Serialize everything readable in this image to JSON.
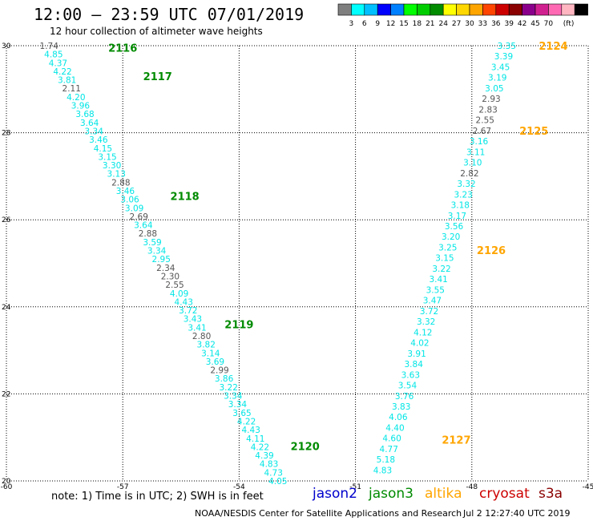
{
  "header": {
    "title": "12:00 – 23:59 UTC 07/01/2019",
    "subtitle": "12 hour collection of altimeter wave heights"
  },
  "colorbar": {
    "colors": [
      "#7f7f7f",
      "#00ffff",
      "#00bfff",
      "#0000ff",
      "#0080ff",
      "#00ff00",
      "#00cd00",
      "#008b00",
      "#ffff00",
      "#ffd700",
      "#ffa500",
      "#ff4500",
      "#cd0000",
      "#8b0000",
      "#8b008b",
      "#d02090",
      "#ff69b4",
      "#ffb6c1",
      "#000000"
    ],
    "labels": [
      "3",
      "6",
      "9",
      "12",
      "15",
      "18",
      "21",
      "24",
      "27",
      "30",
      "33",
      "36",
      "39",
      "42",
      "45",
      "70"
    ],
    "unit": "(ft)"
  },
  "footer": {
    "note": "note: 1) Time is in UTC; 2) SWH is in feet",
    "credit": "NOAA/NESDIS Center for Satellite Applications and Research",
    "timestamp": "Jul  2 12:27:40 UTC 2019"
  },
  "satellites": [
    {
      "name": "jason2",
      "color": "#0000cd"
    },
    {
      "name": "jason3",
      "color": "#008b00"
    },
    {
      "name": "altika",
      "color": "#ffa500"
    },
    {
      "name": "cryosat",
      "color": "#cd0000"
    },
    {
      "name": "s3a",
      "color": "#8b0000"
    }
  ],
  "chart_data": {
    "type": "scatter",
    "title": "12:00 – 23:59 UTC 07/01/2019",
    "subtitle": "12 hour collection of altimeter wave heights",
    "xlim": [
      -60,
      -45
    ],
    "ylim": [
      20,
      30
    ],
    "x_ticks": [
      "-60",
      "-57",
      "-54",
      "-51",
      "-48",
      "-45"
    ],
    "y_ticks": [
      "20",
      "22",
      "24",
      "26",
      "28",
      "30"
    ],
    "grid": true,
    "colors": {
      "cyan": "#00e5e5",
      "gray": "#555555",
      "pass_jason3": "#008b00",
      "pass_altika": "#ffa500"
    },
    "track_west": {
      "satellite": "jason3",
      "x_start": -58.9,
      "y_start": 30.0,
      "x_end": -53.0,
      "y_end": 20.0,
      "labels": [
        "1.74",
        "4.85",
        "4.37",
        "4.22",
        "3.81",
        "2.11",
        "4.20",
        "3.96",
        "3.68",
        "3.64",
        "3.34",
        "3.46",
        "4.15",
        "3.15",
        "3.30",
        "3.13",
        "2.88",
        "3.46",
        "3.06",
        "3.09",
        "2.69",
        "3.64",
        "2.88",
        "3.59",
        "3.34",
        "2.95",
        "2.34",
        "2.30",
        "2.55",
        "4.09",
        "4.43",
        "3.72",
        "3.43",
        "3.41",
        "2.80",
        "3.82",
        "3.14",
        "3.69",
        "2.99",
        "3.86",
        "3.22",
        "3.34",
        "3.34",
        "3.65",
        "4.22",
        "4.43",
        "4.11",
        "4.22",
        "4.39",
        "4.83",
        "4.73",
        "4.05"
      ],
      "gray_indices": [
        0,
        5,
        16,
        20,
        22,
        26,
        27,
        28,
        34,
        38
      ]
    },
    "track_east": {
      "satellite": "altika",
      "x_start": -47.1,
      "y_start": 30.0,
      "x_end": -50.3,
      "y_end": 20.25,
      "labels": [
        "3.35",
        "3.39",
        "3.45",
        "3.19",
        "3.05",
        "2.93",
        "2.83",
        "2.55",
        "2.67",
        "3.16",
        "3.11",
        "3.10",
        "2.82",
        "3.32",
        "3.23",
        "3.18",
        "3.17",
        "3.56",
        "3.20",
        "3.25",
        "3.15",
        "3.22",
        "3.41",
        "3.55",
        "3.47",
        "3.72",
        "3.32",
        "4.12",
        "4.02",
        "3.91",
        "3.84",
        "3.63",
        "3.54",
        "3.76",
        "3.83",
        "4.06",
        "4.40",
        "4.60",
        "4.77",
        "5.18",
        "4.83"
      ],
      "gray_indices": [
        5,
        6,
        7,
        8,
        12
      ]
    },
    "pass_labels": [
      {
        "text": "2116",
        "x": -57.0,
        "y": 29.95,
        "satellite": "jason3"
      },
      {
        "text": "2117",
        "x": -56.1,
        "y": 29.3,
        "satellite": "jason3"
      },
      {
        "text": "2118",
        "x": -55.4,
        "y": 26.55,
        "satellite": "jason3"
      },
      {
        "text": "2119",
        "x": -54.0,
        "y": 23.6,
        "satellite": "jason3"
      },
      {
        "text": "2120",
        "x": -52.3,
        "y": 20.8,
        "satellite": "jason3"
      },
      {
        "text": "2124",
        "x": -45.9,
        "y": 30.0,
        "satellite": "altika"
      },
      {
        "text": "2125",
        "x": -46.4,
        "y": 28.05,
        "satellite": "altika"
      },
      {
        "text": "2126",
        "x": -47.5,
        "y": 25.3,
        "satellite": "altika"
      },
      {
        "text": "2127",
        "x": -48.4,
        "y": 20.95,
        "satellite": "altika"
      }
    ]
  }
}
